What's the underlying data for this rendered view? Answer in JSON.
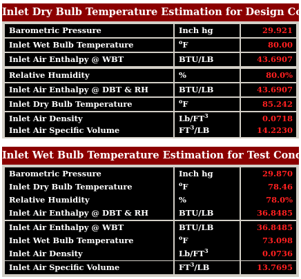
{
  "design": {
    "title": "Inlet Dry Bulb Temperature Estimation for Design Condition",
    "rows": [
      {
        "label": "Barometric Pressure",
        "unit_main": "Inch hg",
        "unit_sup": "",
        "unit_tail": "",
        "value": "29.921"
      },
      {
        "label": "Inlet Wet Bulb Temperature",
        "unit_main": "",
        "unit_sup": "o",
        "unit_tail": "F",
        "value": "80.00"
      },
      {
        "label": "Inlet Air Enthalpy @ WBT",
        "unit_main": "BTU/LB",
        "unit_sup": "",
        "unit_tail": "",
        "value": "43.6907"
      },
      {
        "label": "Relative Humidity",
        "unit_main": "%",
        "unit_sup": "",
        "unit_tail": "",
        "value": "80.0%"
      },
      {
        "label": "Inlet Air Enthalpy @ DBT & RH",
        "unit_main": "BTU/LB",
        "unit_sup": "",
        "unit_tail": "",
        "value": "43.6907"
      },
      {
        "label": "Inlet Dry Bulb Temperature",
        "unit_main": "",
        "unit_sup": "o",
        "unit_tail": "F",
        "value": "85.242"
      },
      {
        "label": "Inlet Air Density",
        "unit_main": "Lb/FT",
        "unit_sup": "3",
        "unit_tail": "",
        "value": "0.0718"
      },
      {
        "label": "Inlet Air Specific Volume",
        "unit_main": "FT",
        "unit_sup": "3",
        "unit_tail": "/LB",
        "value": "14.2230"
      }
    ]
  },
  "test": {
    "title": "Inlet Wet Bulb Temperature Estimation for Test Condition",
    "rows": [
      {
        "label": "Barometric Pressure",
        "unit_main": "Inch hg",
        "unit_sup": "",
        "unit_tail": "",
        "value": "29.870"
      },
      {
        "label": "Inlet Dry Bulb Temperature",
        "unit_main": "",
        "unit_sup": "o",
        "unit_tail": "F",
        "value": "78.46"
      },
      {
        "label": "Relative Humidity",
        "unit_main": "%",
        "unit_sup": "",
        "unit_tail": "",
        "value": "78.0%"
      },
      {
        "label": "Inlet Air Enthalpy @ DBT & RH",
        "unit_main": "BTU/LB",
        "unit_sup": "",
        "unit_tail": "",
        "value": "36.8485"
      },
      {
        "label": "Inlet Air Enthalpy @ WBT",
        "unit_main": "BTU/LB",
        "unit_sup": "",
        "unit_tail": "",
        "value": "36.8485"
      },
      {
        "label": "Inlet Wet Bulb Temperature",
        "unit_main": "",
        "unit_sup": "o",
        "unit_tail": "F",
        "value": "73.098"
      },
      {
        "label": "Inlet Air Density",
        "unit_main": "Lb/FT",
        "unit_sup": "3",
        "unit_tail": "",
        "value": "0.0736"
      },
      {
        "label": "Inlet Air Specific Volume",
        "unit_main": "FT",
        "unit_sup": "3",
        "unit_tail": "/LB",
        "value": "13.7695"
      }
    ]
  },
  "colors": {
    "title_bg": "#8b0000",
    "cell_bg": "#000000",
    "value_text": "#ff2020",
    "panel_bg": "#d4d0c8"
  }
}
